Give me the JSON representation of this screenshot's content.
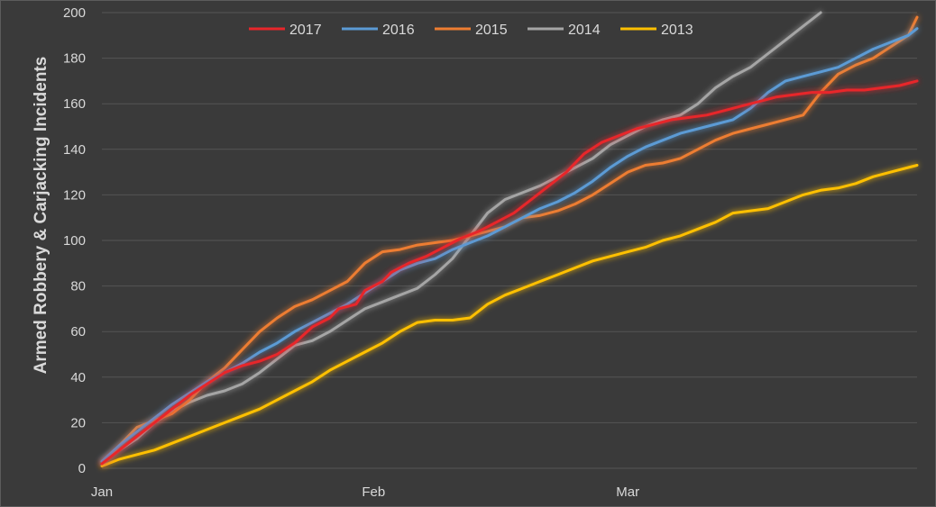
{
  "chart_data": {
    "type": "line",
    "title": "",
    "xlabel": "",
    "ylabel": "Armed Robbery & Carjacking Incidents",
    "ylim": [
      0,
      200
    ],
    "y_ticks": [
      "0",
      "20",
      "40",
      "60",
      "80",
      "100",
      "120",
      "140",
      "160",
      "180",
      "200"
    ],
    "x_ticks": [
      {
        "label": "Jan",
        "day": 0
      },
      {
        "label": "Feb",
        "day": 31
      },
      {
        "label": "Mar",
        "day": 60
      }
    ],
    "xlim": [
      0,
      93
    ],
    "grid": true,
    "legend_position": "top",
    "series": [
      {
        "name": "2017",
        "color": "#e8262a",
        "points": [
          [
            0,
            2
          ],
          [
            2,
            8
          ],
          [
            4,
            14
          ],
          [
            6,
            20
          ],
          [
            8,
            26
          ],
          [
            10,
            32
          ],
          [
            12,
            37
          ],
          [
            14,
            42
          ],
          [
            16,
            45
          ],
          [
            18,
            47
          ],
          [
            20,
            50
          ],
          [
            22,
            55
          ],
          [
            24,
            62
          ],
          [
            26,
            66
          ],
          [
            27,
            70
          ],
          [
            29,
            72
          ],
          [
            30,
            78
          ],
          [
            32,
            82
          ],
          [
            33,
            86
          ],
          [
            35,
            90
          ],
          [
            37,
            93
          ],
          [
            39,
            97
          ],
          [
            41,
            101
          ],
          [
            43,
            104
          ],
          [
            45,
            108
          ],
          [
            47,
            112
          ],
          [
            49,
            118
          ],
          [
            51,
            124
          ],
          [
            53,
            130
          ],
          [
            55,
            138
          ],
          [
            57,
            143
          ],
          [
            59,
            146
          ],
          [
            61,
            149
          ],
          [
            63,
            151
          ],
          [
            65,
            153
          ],
          [
            67,
            154
          ],
          [
            69,
            155
          ],
          [
            71,
            157
          ],
          [
            73,
            159
          ],
          [
            75,
            161
          ],
          [
            77,
            163
          ],
          [
            79,
            164
          ],
          [
            81,
            165
          ],
          [
            83,
            165
          ],
          [
            85,
            166
          ],
          [
            87,
            166
          ],
          [
            89,
            167
          ],
          [
            91,
            168
          ],
          [
            93,
            170
          ]
        ]
      },
      {
        "name": "2016",
        "color": "#5b9bd5",
        "points": [
          [
            0,
            3
          ],
          [
            2,
            10
          ],
          [
            4,
            16
          ],
          [
            6,
            22
          ],
          [
            8,
            28
          ],
          [
            10,
            33
          ],
          [
            12,
            38
          ],
          [
            14,
            42
          ],
          [
            16,
            46
          ],
          [
            18,
            51
          ],
          [
            20,
            55
          ],
          [
            22,
            60
          ],
          [
            24,
            64
          ],
          [
            26,
            68
          ],
          [
            28,
            72
          ],
          [
            30,
            77
          ],
          [
            32,
            82
          ],
          [
            34,
            87
          ],
          [
            36,
            90
          ],
          [
            38,
            92
          ],
          [
            40,
            96
          ],
          [
            42,
            99
          ],
          [
            44,
            102
          ],
          [
            46,
            106
          ],
          [
            48,
            110
          ],
          [
            50,
            114
          ],
          [
            52,
            117
          ],
          [
            54,
            121
          ],
          [
            56,
            126
          ],
          [
            58,
            132
          ],
          [
            60,
            137
          ],
          [
            62,
            141
          ],
          [
            64,
            144
          ],
          [
            66,
            147
          ],
          [
            68,
            149
          ],
          [
            70,
            151
          ],
          [
            72,
            153
          ],
          [
            74,
            158
          ],
          [
            76,
            165
          ],
          [
            78,
            170
          ],
          [
            80,
            172
          ],
          [
            82,
            174
          ],
          [
            84,
            176
          ],
          [
            86,
            180
          ],
          [
            88,
            184
          ],
          [
            90,
            187
          ],
          [
            92,
            190
          ],
          [
            93,
            193
          ]
        ]
      },
      {
        "name": "2015",
        "color": "#ed7d31",
        "points": [
          [
            0,
            2
          ],
          [
            2,
            10
          ],
          [
            4,
            18
          ],
          [
            6,
            21
          ],
          [
            8,
            24
          ],
          [
            10,
            30
          ],
          [
            12,
            38
          ],
          [
            14,
            44
          ],
          [
            16,
            52
          ],
          [
            18,
            60
          ],
          [
            20,
            66
          ],
          [
            22,
            71
          ],
          [
            24,
            74
          ],
          [
            26,
            78
          ],
          [
            28,
            82
          ],
          [
            30,
            90
          ],
          [
            32,
            95
          ],
          [
            34,
            96
          ],
          [
            36,
            98
          ],
          [
            38,
            99
          ],
          [
            40,
            100
          ],
          [
            42,
            102
          ],
          [
            44,
            104
          ],
          [
            46,
            106
          ],
          [
            48,
            110
          ],
          [
            50,
            111
          ],
          [
            52,
            113
          ],
          [
            54,
            116
          ],
          [
            56,
            120
          ],
          [
            58,
            125
          ],
          [
            60,
            130
          ],
          [
            62,
            133
          ],
          [
            64,
            134
          ],
          [
            66,
            136
          ],
          [
            68,
            140
          ],
          [
            70,
            144
          ],
          [
            72,
            147
          ],
          [
            74,
            149
          ],
          [
            76,
            151
          ],
          [
            78,
            153
          ],
          [
            80,
            155
          ],
          [
            82,
            165
          ],
          [
            84,
            173
          ],
          [
            86,
            177
          ],
          [
            88,
            180
          ],
          [
            90,
            185
          ],
          [
            92,
            190
          ],
          [
            93,
            198
          ]
        ]
      },
      {
        "name": "2014",
        "color": "#a5a5a5",
        "points": [
          [
            0,
            3
          ],
          [
            2,
            8
          ],
          [
            4,
            13
          ],
          [
            6,
            20
          ],
          [
            8,
            25
          ],
          [
            10,
            29
          ],
          [
            12,
            32
          ],
          [
            14,
            34
          ],
          [
            16,
            37
          ],
          [
            18,
            42
          ],
          [
            20,
            48
          ],
          [
            22,
            54
          ],
          [
            24,
            56
          ],
          [
            26,
            60
          ],
          [
            28,
            65
          ],
          [
            30,
            70
          ],
          [
            32,
            73
          ],
          [
            34,
            76
          ],
          [
            36,
            79
          ],
          [
            38,
            85
          ],
          [
            40,
            92
          ],
          [
            42,
            102
          ],
          [
            44,
            112
          ],
          [
            46,
            118
          ],
          [
            48,
            121
          ],
          [
            50,
            124
          ],
          [
            52,
            128
          ],
          [
            54,
            132
          ],
          [
            56,
            136
          ],
          [
            58,
            142
          ],
          [
            60,
            146
          ],
          [
            62,
            150
          ],
          [
            64,
            153
          ],
          [
            66,
            155
          ],
          [
            68,
            160
          ],
          [
            70,
            167
          ],
          [
            72,
            172
          ],
          [
            74,
            176
          ],
          [
            76,
            182
          ],
          [
            78,
            188
          ],
          [
            80,
            194
          ],
          [
            82,
            200
          ]
        ]
      },
      {
        "name": "2013",
        "color": "#ffc000",
        "points": [
          [
            0,
            1
          ],
          [
            2,
            4
          ],
          [
            4,
            6
          ],
          [
            6,
            8
          ],
          [
            8,
            11
          ],
          [
            10,
            14
          ],
          [
            12,
            17
          ],
          [
            14,
            20
          ],
          [
            16,
            23
          ],
          [
            18,
            26
          ],
          [
            20,
            30
          ],
          [
            22,
            34
          ],
          [
            24,
            38
          ],
          [
            26,
            43
          ],
          [
            28,
            47
          ],
          [
            30,
            51
          ],
          [
            32,
            55
          ],
          [
            34,
            60
          ],
          [
            36,
            64
          ],
          [
            38,
            65
          ],
          [
            40,
            65
          ],
          [
            42,
            66
          ],
          [
            44,
            72
          ],
          [
            46,
            76
          ],
          [
            48,
            79
          ],
          [
            50,
            82
          ],
          [
            52,
            85
          ],
          [
            54,
            88
          ],
          [
            56,
            91
          ],
          [
            58,
            93
          ],
          [
            60,
            95
          ],
          [
            62,
            97
          ],
          [
            64,
            100
          ],
          [
            66,
            102
          ],
          [
            68,
            105
          ],
          [
            70,
            108
          ],
          [
            72,
            112
          ],
          [
            74,
            113
          ],
          [
            76,
            114
          ],
          [
            78,
            117
          ],
          [
            80,
            120
          ],
          [
            82,
            122
          ],
          [
            84,
            123
          ],
          [
            86,
            125
          ],
          [
            88,
            128
          ],
          [
            90,
            130
          ],
          [
            92,
            132
          ],
          [
            93,
            133
          ]
        ]
      }
    ]
  }
}
